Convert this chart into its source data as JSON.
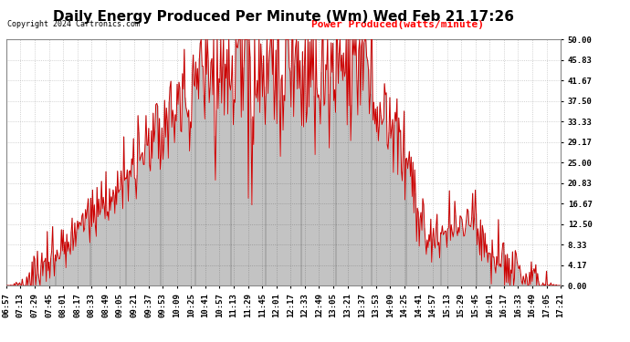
{
  "title": "Daily Energy Produced Per Minute (Wm) Wed Feb 21 17:26",
  "copyright": "Copyright 2024 Cartronics.com",
  "legend_label": "Power Produced(watts/minute)",
  "ylabel_right_values": [
    50.0,
    45.83,
    41.67,
    37.5,
    33.33,
    29.17,
    25.0,
    20.83,
    16.67,
    12.5,
    8.33,
    4.17,
    0.0
  ],
  "ymin": 0.0,
  "ymax": 50.0,
  "line_color": "#cc0000",
  "bar_color": "#000000",
  "background_color": "#ffffff",
  "grid_color": "#aaaaaa",
  "title_fontsize": 11,
  "copyright_fontsize": 6,
  "legend_fontsize": 8,
  "tick_fontsize": 6.5,
  "x_tick_labels": [
    "06:57",
    "07:13",
    "07:29",
    "07:45",
    "08:01",
    "08:17",
    "08:33",
    "08:49",
    "09:05",
    "09:21",
    "09:37",
    "09:53",
    "10:09",
    "10:25",
    "10:41",
    "10:57",
    "11:13",
    "11:29",
    "11:45",
    "12:01",
    "12:17",
    "12:33",
    "12:49",
    "13:05",
    "13:21",
    "13:37",
    "13:53",
    "14:09",
    "14:25",
    "14:41",
    "14:57",
    "15:13",
    "15:29",
    "15:45",
    "16:01",
    "16:17",
    "16:33",
    "16:49",
    "17:05",
    "17:21"
  ]
}
